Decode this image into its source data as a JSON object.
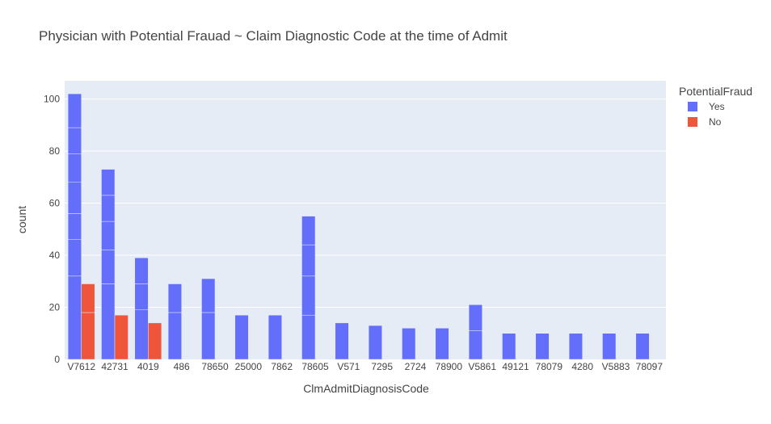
{
  "chart_data": {
    "type": "bar",
    "title": "Physician with Potential Frauad ~ Claim Diagnostic Code at the time of Admit",
    "xlabel": "ClmAdmitDiagnosisCode",
    "ylabel": "count",
    "ylim": [
      0,
      107
    ],
    "yticks": [
      0,
      20,
      40,
      60,
      80,
      100
    ],
    "categories": [
      "V7612",
      "42731",
      "4019",
      "486",
      "78650",
      "25000",
      "7862",
      "78605",
      "V571",
      "7295",
      "2724",
      "78900",
      "V5861",
      "49121",
      "78079",
      "4280",
      "V5883",
      "78097"
    ],
    "legend": {
      "title": "PotentialFraud",
      "placement": "right"
    },
    "grid": true,
    "series": [
      {
        "name": "Yes",
        "color": "#636efa",
        "values": [
          102,
          73,
          39,
          29,
          31,
          17,
          17,
          55,
          14,
          13,
          12,
          12,
          21,
          10,
          10,
          10,
          10,
          10
        ],
        "segments": [
          [
            32,
            14,
            10,
            12,
            11,
            10,
            13
          ],
          [
            29,
            13,
            11,
            10,
            10
          ],
          [
            19,
            10,
            10
          ],
          [
            18,
            11
          ],
          [
            18,
            13
          ],
          [
            17
          ],
          [
            17
          ],
          [
            17,
            15,
            12,
            11
          ],
          [
            14
          ],
          [
            13
          ],
          [
            12
          ],
          [
            12
          ],
          [
            11,
            10
          ],
          [
            10
          ],
          [
            10
          ],
          [
            10
          ],
          [
            10
          ],
          [
            10
          ]
        ]
      },
      {
        "name": "No",
        "color": "#ef553b",
        "values": [
          29,
          17,
          14,
          0,
          0,
          0,
          0,
          0,
          0,
          0,
          0,
          0,
          0,
          0,
          0,
          0,
          0,
          0
        ],
        "segments": [
          [
            18,
            11
          ],
          [
            17
          ],
          [
            14
          ],
          [],
          [],
          [],
          [],
          [],
          [],
          [],
          [],
          [],
          [],
          [],
          [],
          [],
          [],
          []
        ]
      }
    ]
  }
}
